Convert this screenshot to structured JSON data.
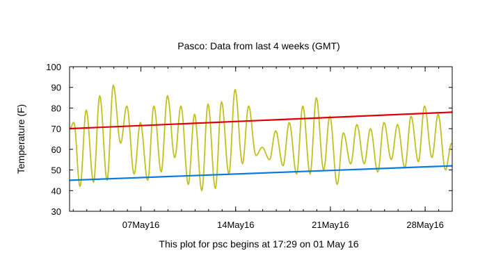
{
  "colors": {
    "background": "#ffffff",
    "observed": "#c0c020",
    "normal_high": "#e00000",
    "normal_low": "#0a7ae0",
    "frame": "#000000"
  },
  "chart_data": {
    "type": "line",
    "title": "Pasco:  Data from last 4 weeks (GMT)",
    "xlabel": "This plot for psc begins at 17:29 on 01 May 16",
    "ylabel": "Temperature (F)",
    "ylim": [
      30,
      100
    ],
    "yticks": [
      30,
      40,
      50,
      60,
      70,
      80,
      90,
      100
    ],
    "xlim": [
      "2016-05-01 17:29",
      "2016-05-30 00:00"
    ],
    "xticks": [
      {
        "date": "2016-05-07",
        "label": "07May16"
      },
      {
        "date": "2016-05-14",
        "label": "14May16"
      },
      {
        "date": "2016-05-21",
        "label": "21May16"
      },
      {
        "date": "2016-05-28",
        "label": "28May16"
      }
    ],
    "grid": false,
    "series": [
      {
        "role": "observed",
        "x": [
          "2016-05-01 18:00",
          "2016-05-02 01:00",
          "2016-05-02 12:00",
          "2016-05-02 23:00",
          "2016-05-03 12:00",
          "2016-05-03 23:00",
          "2016-05-04 12:00",
          "2016-05-04 23:00",
          "2016-05-05 12:00",
          "2016-05-05 23:00",
          "2016-05-06 12:00",
          "2016-05-06 23:00",
          "2016-05-07 12:00",
          "2016-05-07 23:00",
          "2016-05-08 12:00",
          "2016-05-08 23:00",
          "2016-05-09 12:00",
          "2016-05-09 23:00",
          "2016-05-10 12:00",
          "2016-05-10 23:00",
          "2016-05-11 12:00",
          "2016-05-11 23:00",
          "2016-05-12 12:00",
          "2016-05-12 23:00",
          "2016-05-13 12:00",
          "2016-05-13 23:00",
          "2016-05-14 12:00",
          "2016-05-14 23:00",
          "2016-05-15 12:00",
          "2016-05-15 23:00",
          "2016-05-16 12:00",
          "2016-05-16 23:00",
          "2016-05-17 12:00",
          "2016-05-17 23:00",
          "2016-05-18 12:00",
          "2016-05-18 23:00",
          "2016-05-19 12:00",
          "2016-05-19 23:00",
          "2016-05-20 12:00",
          "2016-05-20 23:00",
          "2016-05-21 12:00",
          "2016-05-21 23:00",
          "2016-05-22 12:00",
          "2016-05-22 23:00",
          "2016-05-23 12:00",
          "2016-05-23 23:00",
          "2016-05-24 12:00",
          "2016-05-24 23:00",
          "2016-05-25 12:00",
          "2016-05-25 23:00",
          "2016-05-26 12:00",
          "2016-05-26 23:00",
          "2016-05-27 12:00",
          "2016-05-27 23:00",
          "2016-05-28 12:00",
          "2016-05-28 23:00",
          "2016-05-29 12:00",
          "2016-05-29 23:00"
        ],
        "values": [
          70,
          73,
          42,
          79,
          44,
          86,
          45,
          91,
          63,
          81,
          48,
          73,
          45,
          81,
          49,
          86,
          56,
          81,
          43,
          77,
          40,
          82,
          41,
          83,
          48,
          89,
          53,
          81,
          57,
          61,
          55,
          69,
          52,
          73,
          48,
          81,
          48,
          85,
          50,
          76,
          43,
          68,
          53,
          72,
          53,
          70,
          49,
          73,
          55,
          72,
          51,
          76,
          54,
          81,
          56,
          77,
          50,
          63
        ]
      },
      {
        "role": "normal_high",
        "x": [
          "2016-05-01 17:29",
          "2016-05-30 00:00"
        ],
        "values": [
          70,
          78
        ]
      },
      {
        "role": "normal_low",
        "x": [
          "2016-05-01 17:29",
          "2016-05-30 00:00"
        ],
        "values": [
          45,
          52
        ]
      }
    ]
  }
}
